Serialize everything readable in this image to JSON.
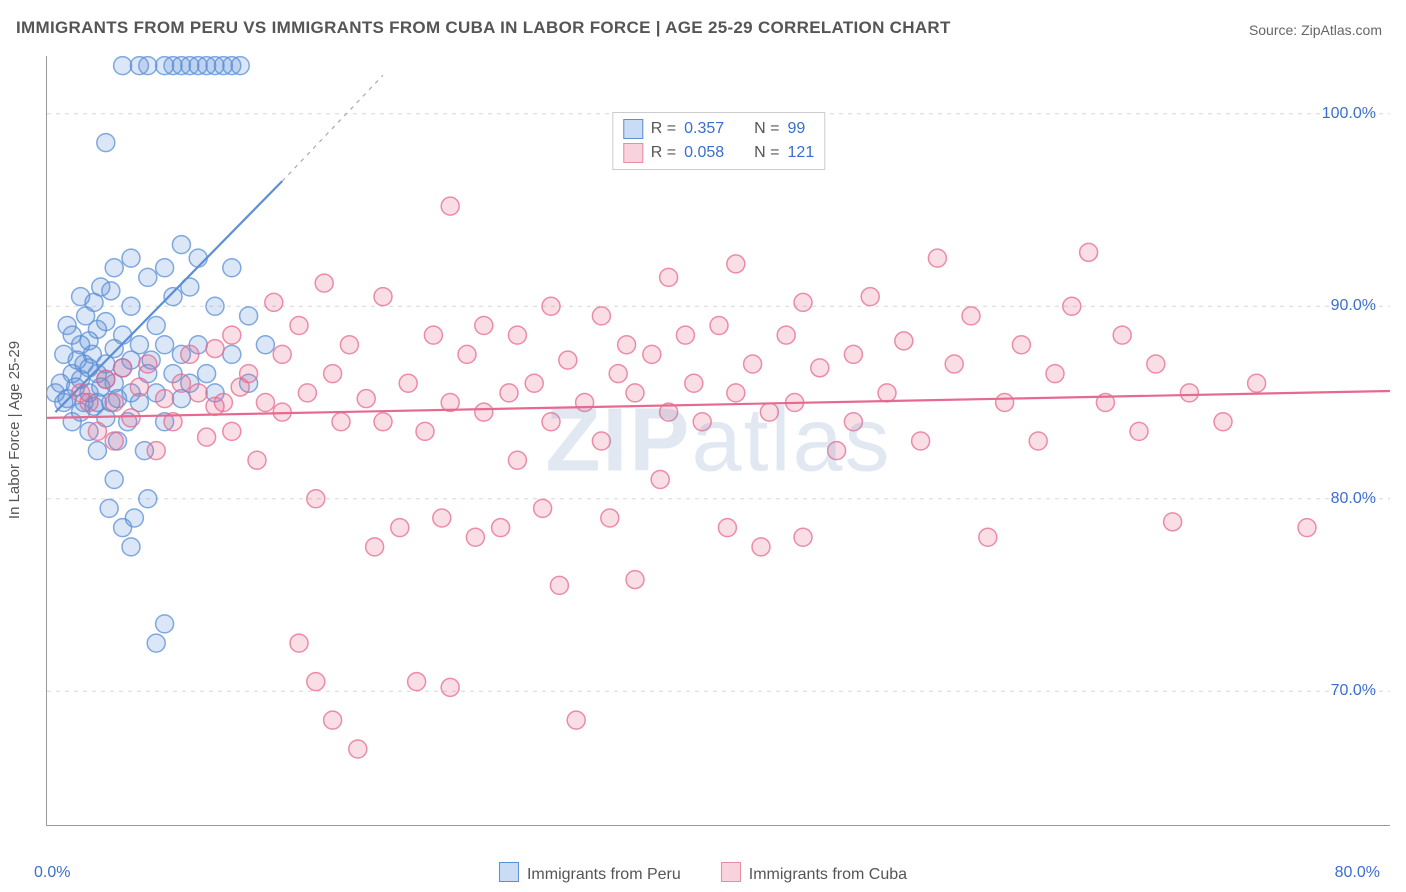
{
  "title": "IMMIGRANTS FROM PERU VS IMMIGRANTS FROM CUBA IN LABOR FORCE | AGE 25-29 CORRELATION CHART",
  "source_label": "Source:",
  "source_name": "ZipAtlas.com",
  "y_axis_label": "In Labor Force | Age 25-29",
  "watermark": {
    "left": "ZIP",
    "right": "atlas"
  },
  "chart": {
    "type": "scatter-with-trend",
    "background_color": "#ffffff",
    "grid_color": "#d8d8d8",
    "axis_color": "#999999",
    "tick_label_color": "#3a6fcf",
    "text_color": "#555555",
    "font_family": "Arial",
    "title_fontsize": 17,
    "label_fontsize": 15,
    "tick_fontsize": 16,
    "marker_radius": 9,
    "marker_stroke_width": 1.5,
    "marker_fill_opacity": 0.22,
    "trend_line_width": 2.2,
    "x_domain": [
      0,
      80
    ],
    "y_domain": [
      63,
      103
    ],
    "x_ticks": [
      0,
      13.33,
      26.67,
      40,
      53.33,
      66.67,
      80
    ],
    "x_tick_labels_shown": {
      "0": "0.0%",
      "80": "80.0%"
    },
    "y_ticks": [
      70,
      80,
      90,
      100
    ],
    "y_tick_labels": [
      "70.0%",
      "80.0%",
      "90.0%",
      "100.0%"
    ],
    "legend_top": [
      {
        "swatch_fill": "#c9dcf3",
        "swatch_stroke": "#5a8fd6",
        "r_label": "R =",
        "r_value": "0.357",
        "n_label": "N =",
        "n_value": "99"
      },
      {
        "swatch_fill": "#f8d2dc",
        "swatch_stroke": "#e88ba4",
        "r_label": "R =",
        "r_value": "0.058",
        "n_label": "N =",
        "n_value": "121"
      }
    ],
    "legend_bottom": [
      {
        "swatch_fill": "#c9dcf3",
        "swatch_stroke": "#5a8fd6",
        "label": "Immigrants from Peru"
      },
      {
        "swatch_fill": "#f8d2dc",
        "swatch_stroke": "#e88ba4",
        "label": "Immigrants from Cuba"
      }
    ],
    "series": [
      {
        "name": "Immigrants from Peru",
        "color_stroke": "#5a8fd6",
        "color_fill": "#5a8fd6",
        "trend": {
          "x1": 0.5,
          "y1": 84.5,
          "x2": 14,
          "y2": 96.5,
          "dash_extend_to": {
            "x": 20,
            "y": 102
          }
        },
        "points": [
          [
            0.5,
            85.5
          ],
          [
            0.8,
            86
          ],
          [
            1,
            85
          ],
          [
            1,
            87.5
          ],
          [
            1.2,
            85.2
          ],
          [
            1.2,
            89
          ],
          [
            1.5,
            84
          ],
          [
            1.5,
            86.5
          ],
          [
            1.5,
            88.5
          ],
          [
            1.7,
            85.8
          ],
          [
            1.8,
            87.2
          ],
          [
            2,
            84.5
          ],
          [
            2,
            86.2
          ],
          [
            2,
            88
          ],
          [
            2,
            90.5
          ],
          [
            2.2,
            85
          ],
          [
            2.2,
            87
          ],
          [
            2.3,
            89.5
          ],
          [
            2.5,
            83.5
          ],
          [
            2.5,
            85.5
          ],
          [
            2.5,
            86.8
          ],
          [
            2.5,
            88.2
          ],
          [
            2.7,
            87.5
          ],
          [
            2.8,
            84.8
          ],
          [
            2.8,
            90.2
          ],
          [
            3,
            82.5
          ],
          [
            3,
            85
          ],
          [
            3,
            86.5
          ],
          [
            3,
            88.8
          ],
          [
            3.2,
            85.8
          ],
          [
            3.2,
            91
          ],
          [
            3.5,
            84.2
          ],
          [
            3.5,
            86.2
          ],
          [
            3.5,
            87
          ],
          [
            3.5,
            89.2
          ],
          [
            3.7,
            79.5
          ],
          [
            3.8,
            85
          ],
          [
            3.8,
            90.8
          ],
          [
            4,
            81
          ],
          [
            4,
            86
          ],
          [
            4,
            87.8
          ],
          [
            4,
            92
          ],
          [
            4.2,
            83
          ],
          [
            4.2,
            85.2
          ],
          [
            4.5,
            78.5
          ],
          [
            4.5,
            86.8
          ],
          [
            4.5,
            88.5
          ],
          [
            4.8,
            84
          ],
          [
            5,
            77.5
          ],
          [
            5,
            85.5
          ],
          [
            5,
            87.2
          ],
          [
            5,
            90
          ],
          [
            5,
            92.5
          ],
          [
            5.2,
            79
          ],
          [
            5.5,
            85
          ],
          [
            5.5,
            88
          ],
          [
            5.8,
            82.5
          ],
          [
            6,
            80
          ],
          [
            6,
            86.5
          ],
          [
            6,
            91.5
          ],
          [
            6.2,
            87.2
          ],
          [
            6.5,
            72.5
          ],
          [
            6.5,
            85.5
          ],
          [
            6.5,
            89
          ],
          [
            7,
            73.5
          ],
          [
            7,
            84
          ],
          [
            7,
            88
          ],
          [
            7,
            92
          ],
          [
            7.5,
            86.5
          ],
          [
            7.5,
            90.5
          ],
          [
            8,
            85.2
          ],
          [
            8,
            87.5
          ],
          [
            8,
            93.2
          ],
          [
            8.5,
            86
          ],
          [
            8.5,
            91
          ],
          [
            9,
            88
          ],
          [
            9,
            92.5
          ],
          [
            9.5,
            86.5
          ],
          [
            10,
            85.5
          ],
          [
            10,
            90
          ],
          [
            11,
            87.5
          ],
          [
            11,
            92
          ],
          [
            12,
            86
          ],
          [
            12,
            89.5
          ],
          [
            13,
            88
          ],
          [
            3.5,
            98.5
          ],
          [
            4.5,
            102.5
          ],
          [
            5.5,
            102.5
          ],
          [
            6,
            102.5
          ],
          [
            7,
            102.5
          ],
          [
            7.5,
            102.5
          ],
          [
            8,
            102.5
          ],
          [
            8.5,
            102.5
          ],
          [
            9,
            102.5
          ],
          [
            9.5,
            102.5
          ],
          [
            10,
            102.5
          ],
          [
            10.5,
            102.5
          ],
          [
            11,
            102.5
          ],
          [
            11.5,
            102.5
          ]
        ]
      },
      {
        "name": "Immigrants from Cuba",
        "color_stroke": "#e66a8f",
        "color_fill": "#e66a8f",
        "trend": {
          "x1": 0,
          "y1": 84.2,
          "x2": 80,
          "y2": 85.6
        },
        "points": [
          [
            2,
            85.5
          ],
          [
            2.5,
            85
          ],
          [
            3,
            83.5
          ],
          [
            3.5,
            86.2
          ],
          [
            4,
            85
          ],
          [
            4,
            83
          ],
          [
            4.5,
            86.8
          ],
          [
            5,
            84.2
          ],
          [
            5.5,
            85.8
          ],
          [
            6,
            87
          ],
          [
            6.5,
            82.5
          ],
          [
            7,
            85.2
          ],
          [
            7.5,
            84
          ],
          [
            8,
            86
          ],
          [
            8.5,
            87.5
          ],
          [
            9,
            85.5
          ],
          [
            9.5,
            83.2
          ],
          [
            10,
            84.8
          ],
          [
            10,
            87.8
          ],
          [
            10.5,
            85
          ],
          [
            11,
            83.5
          ],
          [
            11,
            88.5
          ],
          [
            11.5,
            85.8
          ],
          [
            12,
            86.5
          ],
          [
            12.5,
            82
          ],
          [
            13,
            85
          ],
          [
            13.5,
            90.2
          ],
          [
            14,
            84.5
          ],
          [
            14,
            87.5
          ],
          [
            15,
            72.5
          ],
          [
            15,
            89
          ],
          [
            15.5,
            85.5
          ],
          [
            16,
            80
          ],
          [
            16,
            70.5
          ],
          [
            16.5,
            91.2
          ],
          [
            17,
            68.5
          ],
          [
            17,
            86.5
          ],
          [
            17.5,
            84
          ],
          [
            18,
            88
          ],
          [
            18.5,
            67
          ],
          [
            19,
            85.2
          ],
          [
            19.5,
            77.5
          ],
          [
            20,
            84
          ],
          [
            20,
            90.5
          ],
          [
            21,
            78.5
          ],
          [
            21.5,
            86
          ],
          [
            22,
            70.5
          ],
          [
            22.5,
            83.5
          ],
          [
            23,
            88.5
          ],
          [
            23.5,
            79
          ],
          [
            24,
            95.2
          ],
          [
            24,
            85
          ],
          [
            24,
            70.2
          ],
          [
            25,
            87.5
          ],
          [
            25.5,
            78
          ],
          [
            26,
            84.5
          ],
          [
            26,
            89
          ],
          [
            27,
            78.5
          ],
          [
            27.5,
            85.5
          ],
          [
            28,
            82
          ],
          [
            28,
            88.5
          ],
          [
            29,
            86
          ],
          [
            29.5,
            79.5
          ],
          [
            30,
            84
          ],
          [
            30,
            90
          ],
          [
            30.5,
            75.5
          ],
          [
            31,
            87.2
          ],
          [
            31.5,
            68.5
          ],
          [
            32,
            85
          ],
          [
            33,
            83
          ],
          [
            33,
            89.5
          ],
          [
            33.5,
            79
          ],
          [
            34,
            86.5
          ],
          [
            34.5,
            88
          ],
          [
            35,
            75.8
          ],
          [
            35,
            85.5
          ],
          [
            36,
            87.5
          ],
          [
            36.5,
            81
          ],
          [
            37,
            84.5
          ],
          [
            37,
            91.5
          ],
          [
            38,
            88.5
          ],
          [
            38.5,
            86
          ],
          [
            39,
            84
          ],
          [
            40,
            89
          ],
          [
            40.5,
            78.5
          ],
          [
            41,
            85.5
          ],
          [
            41,
            92.2
          ],
          [
            42,
            87
          ],
          [
            42.5,
            77.5
          ],
          [
            43,
            84.5
          ],
          [
            44,
            88.5
          ],
          [
            44.5,
            85
          ],
          [
            45,
            78
          ],
          [
            45,
            90.2
          ],
          [
            46,
            86.8
          ],
          [
            47,
            82.5
          ],
          [
            48,
            87.5
          ],
          [
            48,
            84
          ],
          [
            49,
            90.5
          ],
          [
            50,
            85.5
          ],
          [
            51,
            88.2
          ],
          [
            52,
            83
          ],
          [
            53,
            92.5
          ],
          [
            54,
            87
          ],
          [
            55,
            89.5
          ],
          [
            56,
            78
          ],
          [
            57,
            85
          ],
          [
            58,
            88
          ],
          [
            59,
            83
          ],
          [
            60,
            86.5
          ],
          [
            61,
            90
          ],
          [
            62,
            92.8
          ],
          [
            63,
            85
          ],
          [
            64,
            88.5
          ],
          [
            65,
            83.5
          ],
          [
            66,
            87
          ],
          [
            67,
            78.8
          ],
          [
            68,
            85.5
          ],
          [
            70,
            84
          ],
          [
            72,
            86
          ],
          [
            75,
            78.5
          ]
        ]
      }
    ]
  }
}
